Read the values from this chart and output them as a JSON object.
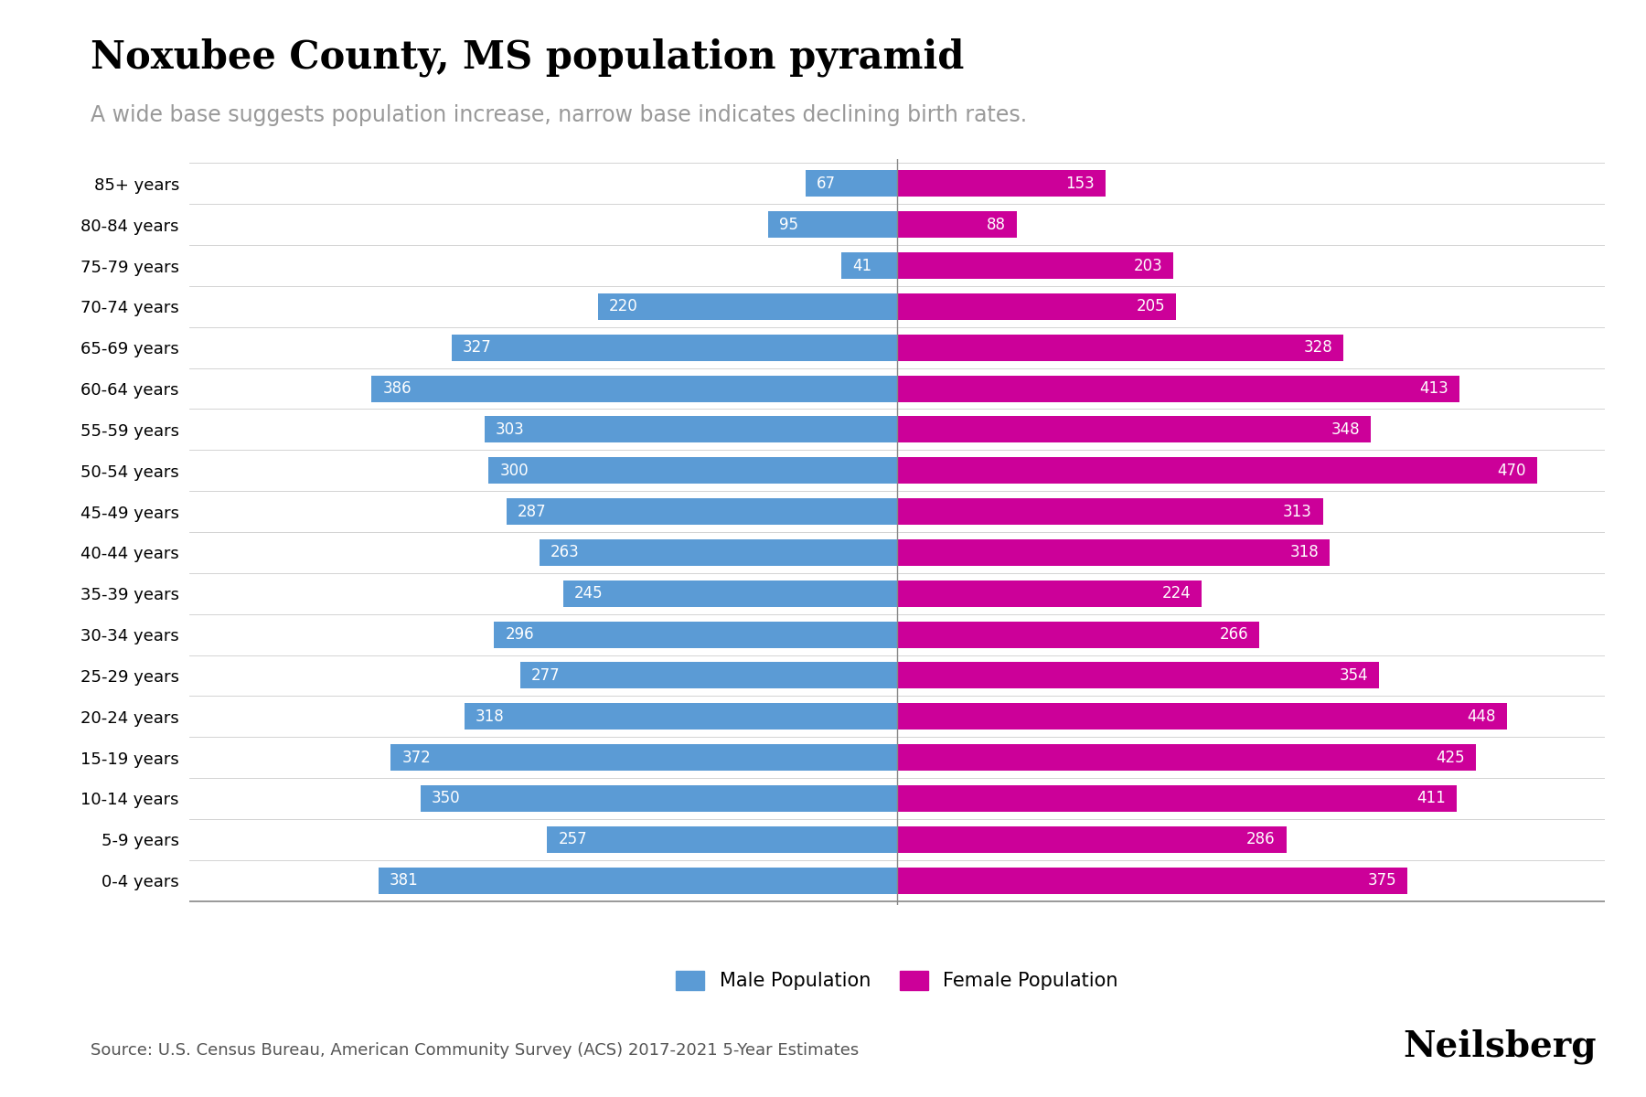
{
  "title": "Noxubee County, MS population pyramid",
  "subtitle": "A wide base suggests population increase, narrow base indicates declining birth rates.",
  "age_groups": [
    "0-4 years",
    "5-9 years",
    "10-14 years",
    "15-19 years",
    "20-24 years",
    "25-29 years",
    "30-34 years",
    "35-39 years",
    "40-44 years",
    "45-49 years",
    "50-54 years",
    "55-59 years",
    "60-64 years",
    "65-69 years",
    "70-74 years",
    "75-79 years",
    "80-84 years",
    "85+ years"
  ],
  "male": [
    381,
    257,
    350,
    372,
    318,
    277,
    296,
    245,
    263,
    287,
    300,
    303,
    386,
    327,
    220,
    41,
    95,
    67
  ],
  "female": [
    375,
    286,
    411,
    425,
    448,
    354,
    266,
    224,
    318,
    313,
    470,
    348,
    413,
    328,
    205,
    203,
    88,
    153
  ],
  "male_color": "#5B9BD5",
  "female_color": "#CC0099",
  "background_color": "#FFFFFF",
  "bar_height": 0.65,
  "xlim": 520,
  "source_text": "Source: U.S. Census Bureau, American Community Survey (ACS) 2017-2021 5-Year Estimates",
  "brand_text": "Neilsberg",
  "title_fontsize": 30,
  "subtitle_fontsize": 17,
  "label_fontsize": 12,
  "tick_fontsize": 13,
  "legend_fontsize": 15,
  "source_fontsize": 13,
  "brand_fontsize": 28
}
